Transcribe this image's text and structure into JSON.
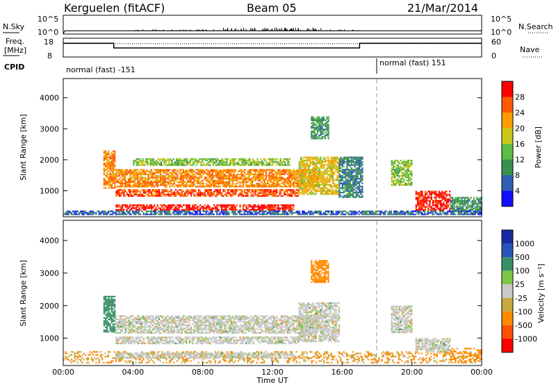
{
  "header": {
    "station": "Kerguelen (fitACF)",
    "beam": "Beam 05",
    "date": "21/Mar/2014"
  },
  "colors": {
    "power_scale": [
      "#1010ff",
      "#2e5fb0",
      "#3a8f4e",
      "#5dbb46",
      "#c9c81a",
      "#ff9c00",
      "#ff5a00",
      "#ff0000"
    ],
    "velocity_scale": [
      "#1a2aa0",
      "#2a55b8",
      "#3a8f6a",
      "#7cc845",
      "#c8c8c8",
      "#c8a840",
      "#ff8a00",
      "#ff5000",
      "#ff0000"
    ],
    "ground_scatter": "#bebebe"
  },
  "chart_data": [
    {
      "type": "line",
      "panel": "nsky_nsearch",
      "left_label": "N.Sky",
      "right_label": "N.Search",
      "left_ticks": [
        "10^5",
        "10^0"
      ],
      "right_ticks": [
        "10^5",
        "10^0"
      ],
      "x_range_hours": [
        0,
        24
      ],
      "series": [
        {
          "name": "N.Sky",
          "style": "solid",
          "x": [
            0,
            0.1,
            24
          ],
          "y_frac": [
            0.0,
            0.15,
            0.15
          ]
        }
      ]
    },
    {
      "type": "line",
      "panel": "freq_nave",
      "left_label_lines": [
        "Freq.",
        "[MHz]"
      ],
      "right_label": "Nave",
      "left_ticks": [
        "18",
        "8"
      ],
      "right_ticks": [
        "60",
        "0"
      ],
      "left_range": [
        8,
        18
      ],
      "right_range": [
        0,
        60
      ],
      "x_range_hours": [
        0,
        24
      ],
      "series": [
        {
          "name": "Freq.",
          "style": "solid",
          "x": [
            0,
            2.9,
            2.9,
            17.0,
            17.0,
            24
          ],
          "y": [
            15.5,
            15.5,
            12.8,
            12.8,
            15.5,
            15.5
          ]
        },
        {
          "name": "Nave",
          "style": "dotted",
          "x": [
            0,
            24
          ],
          "y": [
            44,
            44
          ]
        }
      ]
    },
    {
      "type": "table",
      "panel": "cpid",
      "label": "CPID",
      "segments": [
        {
          "start_hour": 0,
          "end_hour": 18,
          "label": "normal (fast) -151"
        },
        {
          "start_hour": 18,
          "end_hour": 24,
          "label": "normal (fast) 151"
        }
      ]
    },
    {
      "type": "heatmap",
      "panel": "power",
      "ylabel": "Slant Range [km]",
      "y_ticks": [
        1000,
        2000,
        3000,
        4000
      ],
      "ylim": [
        180,
        4600
      ],
      "x_range_hours": [
        0,
        24
      ],
      "colorbar_label": "Power [dB]",
      "colorbar_ticks": [
        "28",
        "24",
        "20",
        "16",
        "12",
        "8",
        "4"
      ],
      "value_range": [
        0,
        30
      ],
      "scatter_regions": [
        {
          "t0": 0.0,
          "t1": 24.0,
          "r0": 240,
          "r1": 360,
          "level": 6
        },
        {
          "t0": 2.3,
          "t1": 3.0,
          "r0": 1100,
          "r1": 2300,
          "level": 22
        },
        {
          "t0": 3.0,
          "t1": 13.2,
          "r0": 400,
          "r1": 560,
          "level": 28
        },
        {
          "t0": 3.0,
          "t1": 13.5,
          "r0": 820,
          "r1": 1050,
          "level": 25
        },
        {
          "t0": 3.0,
          "t1": 14.6,
          "r0": 1150,
          "r1": 1700,
          "level": 22
        },
        {
          "t0": 4.0,
          "t1": 13.0,
          "r0": 1850,
          "r1": 2050,
          "level": 14
        },
        {
          "t0": 13.5,
          "t1": 15.8,
          "r0": 900,
          "r1": 2100,
          "level": 18
        },
        {
          "t0": 14.2,
          "t1": 15.2,
          "r0": 2700,
          "r1": 3400,
          "level": 10
        },
        {
          "t0": 15.8,
          "t1": 17.2,
          "r0": 800,
          "r1": 2100,
          "level": 8
        },
        {
          "t0": 18.8,
          "t1": 20.0,
          "r0": 1200,
          "r1": 2000,
          "level": 14
        },
        {
          "t0": 20.2,
          "t1": 22.2,
          "r0": 380,
          "r1": 1000,
          "level": 28
        },
        {
          "t0": 22.2,
          "t1": 24.0,
          "r0": 400,
          "r1": 800,
          "level": 10
        }
      ]
    },
    {
      "type": "heatmap",
      "panel": "velocity",
      "ylabel": "Slant Range [km]",
      "y_ticks": [
        1000,
        2000,
        3000,
        4000
      ],
      "ylim": [
        180,
        4600
      ],
      "x_range_hours": [
        0,
        24
      ],
      "x_ticks": [
        "00:00",
        "04:00",
        "08:00",
        "12:00",
        "16:00",
        "20:00",
        "00:00"
      ],
      "xlabel": "Time UT",
      "colorbar_label": "Velocity [m s⁻¹]",
      "colorbar_ticks": [
        "1000",
        "500",
        "100",
        "25",
        "-25",
        "-100",
        "-500",
        "-1000"
      ],
      "value_range": [
        -1000,
        1000
      ],
      "scatter_regions": [
        {
          "t0": 0.0,
          "t1": 24.0,
          "r0": 240,
          "r1": 600,
          "level": -100,
          "sparse": true
        },
        {
          "t0": 2.3,
          "t1": 3.0,
          "r0": 1200,
          "r1": 2300,
          "level": 200
        },
        {
          "t0": 3.0,
          "t1": 13.2,
          "r0": 400,
          "r1": 560,
          "level": 0
        },
        {
          "t0": 3.0,
          "t1": 13.5,
          "r0": 820,
          "r1": 1050,
          "level": 0
        },
        {
          "t0": 3.0,
          "t1": 14.6,
          "r0": 1150,
          "r1": 1700,
          "level": 0
        },
        {
          "t0": 13.5,
          "t1": 15.8,
          "r0": 900,
          "r1": 2100,
          "level": 0
        },
        {
          "t0": 14.2,
          "t1": 15.2,
          "r0": 2700,
          "r1": 3400,
          "level": -300
        },
        {
          "t0": 18.8,
          "t1": 20.0,
          "r0": 1200,
          "r1": 2000,
          "level": 0
        },
        {
          "t0": 20.2,
          "t1": 22.2,
          "r0": 600,
          "r1": 1000,
          "level": 0
        },
        {
          "t0": 22.2,
          "t1": 24.0,
          "r0": 300,
          "r1": 700,
          "level": -150,
          "sparse": true
        }
      ]
    }
  ]
}
